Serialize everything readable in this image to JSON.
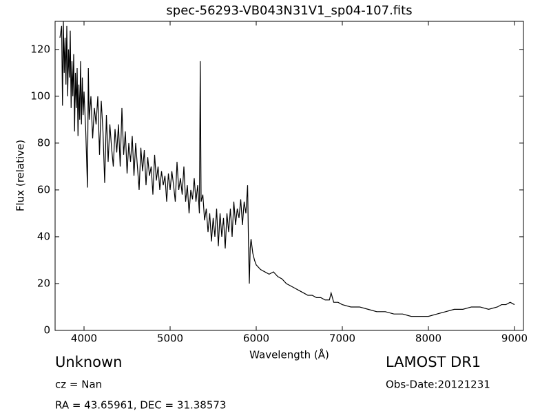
{
  "chart_data": {
    "type": "line",
    "title": "spec-56293-VB043N31V1_sp04-107.fits",
    "x_label": "Wavelength (Å)",
    "y_label": "Flux (relative)",
    "annotations": [
      "Unknown",
      "cz = Nan",
      "RA = 43.65961, DEC = 31.38573",
      "LAMOST DR1",
      "Obs-Date:20121231"
    ],
    "xlim": [
      3664,
      9104
    ],
    "ylim": [
      0,
      132
    ],
    "xticks": [
      4000,
      5000,
      6000,
      7000,
      8000,
      9000
    ],
    "yticks": [
      0,
      20,
      40,
      60,
      80,
      100,
      120
    ],
    "color": "#000000",
    "x": [
      3720,
      3740,
      3750,
      3760,
      3770,
      3780,
      3790,
      3800,
      3810,
      3820,
      3830,
      3840,
      3850,
      3860,
      3870,
      3880,
      3890,
      3900,
      3910,
      3920,
      3930,
      3940,
      3950,
      3960,
      3970,
      3980,
      3990,
      4000,
      4020,
      4040,
      4050,
      4060,
      4080,
      4100,
      4120,
      4140,
      4160,
      4180,
      4200,
      4220,
      4240,
      4260,
      4280,
      4300,
      4320,
      4340,
      4360,
      4380,
      4400,
      4420,
      4440,
      4460,
      4480,
      4500,
      4520,
      4540,
      4560,
      4580,
      4600,
      4620,
      4640,
      4660,
      4680,
      4700,
      4720,
      4740,
      4760,
      4780,
      4800,
      4820,
      4840,
      4860,
      4880,
      4900,
      4920,
      4940,
      4960,
      4980,
      5000,
      5020,
      5040,
      5060,
      5080,
      5100,
      5120,
      5140,
      5160,
      5180,
      5200,
      5220,
      5240,
      5260,
      5280,
      5300,
      5320,
      5340,
      5350,
      5360,
      5380,
      5400,
      5420,
      5440,
      5460,
      5480,
      5500,
      5520,
      5540,
      5560,
      5580,
      5600,
      5620,
      5640,
      5660,
      5680,
      5700,
      5720,
      5740,
      5760,
      5780,
      5800,
      5820,
      5840,
      5860,
      5880,
      5900,
      5910,
      5920,
      5930,
      5940,
      5960,
      5980,
      6000,
      6050,
      6100,
      6150,
      6200,
      6250,
      6300,
      6350,
      6400,
      6450,
      6500,
      6550,
      6600,
      6650,
      6700,
      6750,
      6800,
      6850,
      6870,
      6900,
      6950,
      7000,
      7100,
      7200,
      7300,
      7400,
      7500,
      7600,
      7700,
      7800,
      7900,
      8000,
      8100,
      8200,
      8300,
      8400,
      8500,
      8600,
      8700,
      8800,
      8850,
      8900,
      8950,
      9000
    ],
    "values": [
      125,
      130,
      96,
      132,
      110,
      125,
      105,
      130,
      100,
      120,
      108,
      128,
      95,
      115,
      100,
      118,
      85,
      110,
      95,
      112,
      83,
      105,
      90,
      115,
      88,
      108,
      92,
      102,
      85,
      61,
      112,
      90,
      100,
      82,
      95,
      88,
      100,
      75,
      98,
      85,
      63,
      92,
      72,
      88,
      78,
      70,
      86,
      76,
      88,
      70,
      95,
      75,
      85,
      67,
      80,
      72,
      83,
      66,
      80,
      70,
      60,
      78,
      68,
      77,
      62,
      74,
      66,
      70,
      58,
      75,
      64,
      70,
      60,
      68,
      62,
      66,
      55,
      67,
      60,
      68,
      62,
      55,
      72,
      60,
      65,
      58,
      70,
      55,
      62,
      50,
      60,
      56,
      65,
      55,
      62,
      50,
      115,
      55,
      58,
      47,
      52,
      42,
      50,
      38,
      48,
      40,
      52,
      36,
      50,
      40,
      48,
      35,
      50,
      42,
      52,
      40,
      55,
      45,
      52,
      48,
      56,
      45,
      55,
      50,
      62,
      38,
      20,
      35,
      39,
      33,
      30,
      28,
      26,
      25,
      24,
      25,
      23,
      22,
      20,
      19,
      18,
      17,
      16,
      15,
      15,
      14,
      14,
      13,
      13,
      16,
      12,
      12,
      11,
      10,
      10,
      9,
      8,
      8,
      7,
      7,
      6,
      6,
      6,
      7,
      8,
      9,
      9,
      10,
      10,
      9,
      10,
      11,
      11,
      12,
      11
    ]
  }
}
